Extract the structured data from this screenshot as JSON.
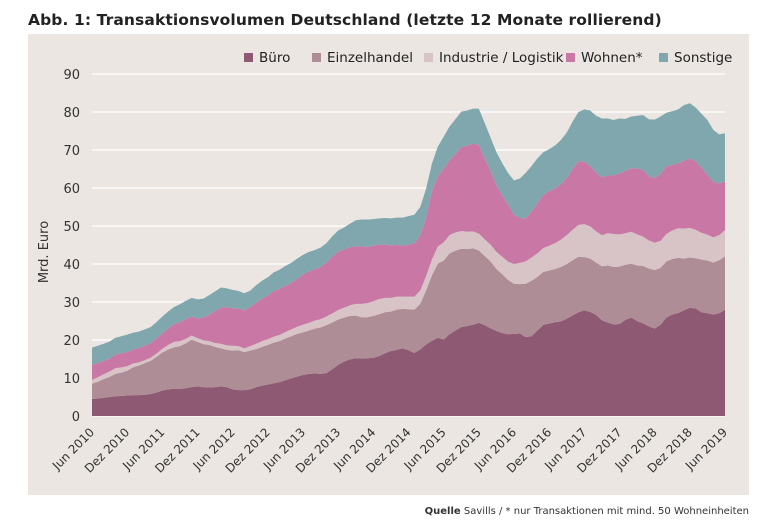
{
  "title": "Abb. 1: Transaktionsvolumen Deutschland (letzte 12 Monate rollierend)",
  "source": {
    "label": "Quelle",
    "text": "Savills / * nur Transaktionen mit mind. 50 Wohneinheiten"
  },
  "colors": {
    "background": "#ebe6e1",
    "buero": "#8e5a73",
    "einzelhandel": "#ae8d96",
    "industrie": "#d8c4c6",
    "wohnen": "#c978a6",
    "sonstige": "#80a7ad",
    "grid": "#ffffff"
  },
  "chart_data": {
    "type": "area",
    "stacked": true,
    "title": "Abb. 1: Transaktionsvolumen Deutschland (letzte 12 Monate rollierend)",
    "ylabel": "Mrd. Euro",
    "ylim": [
      0,
      90
    ],
    "yticks": [
      0,
      10,
      20,
      30,
      40,
      50,
      60,
      70,
      80,
      90
    ],
    "xticks": [
      "Jun 2010",
      "Dez 2010",
      "Jun 2011",
      "Dez 2011",
      "Jun 2012",
      "Dez 2012",
      "Jun 2013",
      "Dez 2013",
      "Jun 2014",
      "Dez 2014",
      "Jun 2015",
      "Dez 2015",
      "Jun 2016",
      "Dez 2016",
      "Jun 2017",
      "Dez 2017",
      "Jun 2018",
      "Dez 2018",
      "Jun 2019"
    ],
    "grid": true,
    "legend_position": "top-right",
    "x": [
      "2010-06",
      "2010-07",
      "2010-08",
      "2010-09",
      "2010-10",
      "2010-11",
      "2010-12",
      "2011-01",
      "2011-02",
      "2011-03",
      "2011-04",
      "2011-05",
      "2011-06",
      "2011-07",
      "2011-08",
      "2011-09",
      "2011-10",
      "2011-11",
      "2011-12",
      "2012-01",
      "2012-02",
      "2012-03",
      "2012-04",
      "2012-05",
      "2012-06",
      "2012-07",
      "2012-08",
      "2012-09",
      "2012-10",
      "2012-11",
      "2012-12",
      "2013-01",
      "2013-02",
      "2013-03",
      "2013-04",
      "2013-05",
      "2013-06",
      "2013-07",
      "2013-08",
      "2013-09",
      "2013-10",
      "2013-11",
      "2013-12",
      "2014-01",
      "2014-02",
      "2014-03",
      "2014-04",
      "2014-05",
      "2014-06",
      "2014-07",
      "2014-08",
      "2014-09",
      "2014-10",
      "2014-11",
      "2014-12",
      "2015-01",
      "2015-02",
      "2015-03",
      "2015-04",
      "2015-05",
      "2015-06",
      "2015-07",
      "2015-08",
      "2015-09",
      "2015-10",
      "2015-11",
      "2015-12",
      "2016-01",
      "2016-02",
      "2016-03",
      "2016-04",
      "2016-05",
      "2016-06",
      "2016-07",
      "2016-08",
      "2016-09",
      "2016-10",
      "2016-11",
      "2016-12",
      "2017-01",
      "2017-02",
      "2017-03",
      "2017-04",
      "2017-05",
      "2017-06",
      "2017-07",
      "2017-08",
      "2017-09",
      "2017-10",
      "2017-11",
      "2017-12",
      "2018-01",
      "2018-02",
      "2018-03",
      "2018-04",
      "2018-05",
      "2018-06",
      "2018-07",
      "2018-08",
      "2018-09",
      "2018-10",
      "2018-11",
      "2018-12",
      "2019-01",
      "2019-02",
      "2019-03",
      "2019-04",
      "2019-05",
      "2019-06"
    ],
    "series": [
      {
        "name": "Büro",
        "color_key": "buero",
        "values": [
          4.5,
          4.6,
          4.8,
          5.0,
          5.2,
          5.3,
          5.4,
          5.5,
          5.5,
          5.6,
          5.8,
          6.2,
          6.7,
          7.0,
          7.2,
          7.1,
          7.3,
          7.6,
          7.8,
          7.6,
          7.5,
          7.6,
          7.8,
          7.6,
          7.0,
          6.8,
          6.8,
          7.0,
          7.6,
          8.0,
          8.3,
          8.6,
          8.9,
          9.4,
          9.9,
          10.4,
          10.8,
          11.1,
          11.2,
          11.1,
          11.3,
          12.3,
          13.5,
          14.3,
          14.9,
          15.2,
          15.1,
          15.2,
          15.3,
          15.8,
          16.5,
          17.1,
          17.4,
          17.8,
          17.3,
          16.6,
          17.5,
          18.8,
          19.8,
          20.6,
          20.1,
          21.5,
          22.5,
          23.4,
          23.7,
          24.0,
          24.5,
          23.9,
          23.1,
          22.4,
          21.8,
          21.5,
          21.6,
          21.7,
          20.8,
          21.0,
          22.5,
          24.0,
          24.3,
          24.7,
          24.9,
          25.6,
          26.5,
          27.3,
          27.8,
          27.4,
          26.6,
          25.2,
          24.6,
          24.1,
          24.2,
          25.3,
          25.9,
          25.0,
          24.4,
          23.6,
          23.0,
          24.0,
          25.9,
          26.7,
          27.1,
          27.8,
          28.5,
          28.3,
          27.3,
          27.0,
          26.7,
          27.0,
          28.0
        ]
      },
      {
        "name": "Einzelhandel",
        "color_key": "einzelhandel",
        "values": [
          4.0,
          4.4,
          4.9,
          5.3,
          5.9,
          6.1,
          6.5,
          7.3,
          7.8,
          8.3,
          8.7,
          9.4,
          10.0,
          10.5,
          10.9,
          11.3,
          11.8,
          12.5,
          11.7,
          11.3,
          11.2,
          10.6,
          10.0,
          9.8,
          10.2,
          10.5,
          10.0,
          10.2,
          10.0,
          10.2,
          10.4,
          10.7,
          10.8,
          11.0,
          11.1,
          11.2,
          11.2,
          11.4,
          11.8,
          12.2,
          12.6,
          12.3,
          11.9,
          11.6,
          11.4,
          11.2,
          10.9,
          10.8,
          11.0,
          11.0,
          10.8,
          10.4,
          10.6,
          10.4,
          10.8,
          11.4,
          12.0,
          14.2,
          17.2,
          19.5,
          20.8,
          21.3,
          21.0,
          20.6,
          20.2,
          20.1,
          19.1,
          18.2,
          17.6,
          16.3,
          15.5,
          14.3,
          13.2,
          13.0,
          14.0,
          14.6,
          14.1,
          13.9,
          14.0,
          14.0,
          14.3,
          14.4,
          14.5,
          14.6,
          14.0,
          14.0,
          13.8,
          14.2,
          15.0,
          15.1,
          15.1,
          14.5,
          14.2,
          14.6,
          15.1,
          15.2,
          15.4,
          15.0,
          14.8,
          14.6,
          14.5,
          13.6,
          13.2,
          13.2,
          13.9,
          13.9,
          13.7,
          14.0,
          14.0
        ]
      },
      {
        "name": "Industrie / Logistik",
        "color_key": "industrie",
        "values": [
          1.0,
          1.2,
          1.3,
          1.4,
          1.5,
          1.4,
          1.2,
          1.0,
          0.8,
          0.8,
          0.8,
          0.8,
          1.0,
          1.2,
          1.4,
          1.3,
          1.2,
          1.1,
          1.0,
          1.0,
          1.0,
          1.0,
          1.2,
          1.2,
          1.3,
          1.1,
          1.0,
          1.2,
          1.4,
          1.5,
          1.5,
          1.6,
          1.6,
          1.7,
          1.8,
          1.9,
          2.0,
          2.0,
          2.1,
          2.2,
          2.3,
          2.4,
          2.5,
          2.6,
          2.8,
          3.1,
          3.5,
          3.7,
          3.9,
          4.0,
          3.8,
          3.6,
          3.4,
          3.2,
          3.3,
          3.4,
          3.5,
          3.8,
          4.2,
          4.5,
          4.8,
          4.8,
          4.8,
          4.7,
          4.6,
          4.5,
          4.4,
          4.4,
          4.4,
          4.5,
          4.6,
          4.8,
          5.2,
          5.6,
          5.9,
          6.1,
          6.2,
          6.3,
          6.5,
          6.8,
          7.2,
          7.6,
          8.0,
          8.4,
          8.7,
          8.5,
          8.2,
          8.2,
          8.5,
          8.7,
          8.5,
          8.3,
          8.4,
          8.2,
          7.7,
          7.4,
          7.2,
          7.1,
          7.2,
          7.5,
          7.8,
          7.9,
          7.8,
          7.5,
          7.0,
          6.8,
          6.6,
          6.6,
          6.9
        ]
      },
      {
        "name": "Wohnen*",
        "color_key": "wohnen",
        "values": [
          4.0,
          3.7,
          3.5,
          3.4,
          3.6,
          3.7,
          3.7,
          3.7,
          3.8,
          3.8,
          3.9,
          4.0,
          4.1,
          4.3,
          4.7,
          5.0,
          5.2,
          5.0,
          5.2,
          6.0,
          7.0,
          8.4,
          9.6,
          10.0,
          9.9,
          9.9,
          10.0,
          10.3,
          10.8,
          11.2,
          11.5,
          12.0,
          12.2,
          12.2,
          12.2,
          12.6,
          13.2,
          13.6,
          13.5,
          13.7,
          14.2,
          15.0,
          15.4,
          15.3,
          15.3,
          15.2,
          15.1,
          14.8,
          14.6,
          14.3,
          14.0,
          13.8,
          13.6,
          13.4,
          13.7,
          14.0,
          14.5,
          15.5,
          18.0,
          18.5,
          19.3,
          19.7,
          20.6,
          22.1,
          22.6,
          23.1,
          23.3,
          21.4,
          19.4,
          17.6,
          16.2,
          15.1,
          13.0,
          11.8,
          11.3,
          12.1,
          13.2,
          14.0,
          14.4,
          14.4,
          14.6,
          15.0,
          16.1,
          16.7,
          16.4,
          15.9,
          15.5,
          15.2,
          15.2,
          15.4,
          16.0,
          16.4,
          16.7,
          17.3,
          17.6,
          17.0,
          17.0,
          17.6,
          17.8,
          17.3,
          17.1,
          17.8,
          18.3,
          18.0,
          17.2,
          15.8,
          14.7,
          13.6,
          12.9
        ]
      },
      {
        "name": "Sonstige",
        "color_key": "sonstige",
        "values": [
          4.5,
          4.6,
          4.5,
          4.5,
          4.4,
          4.5,
          4.6,
          4.4,
          4.3,
          4.3,
          4.2,
          4.3,
          4.4,
          4.5,
          4.5,
          4.7,
          4.8,
          4.9,
          5.0,
          5.0,
          5.1,
          5.2,
          5.2,
          5.0,
          4.8,
          4.6,
          4.5,
          4.3,
          4.6,
          4.7,
          4.8,
          4.9,
          5.0,
          5.2,
          5.3,
          5.3,
          5.2,
          5.1,
          5.1,
          5.1,
          5.1,
          5.3,
          5.5,
          5.8,
          6.2,
          6.8,
          7.1,
          7.2,
          7.0,
          6.9,
          7.0,
          7.1,
          7.2,
          7.4,
          7.5,
          7.6,
          7.5,
          7.5,
          7.2,
          7.8,
          8.5,
          8.9,
          9.2,
          9.3,
          9.3,
          9.2,
          9.6,
          9.2,
          8.8,
          8.6,
          8.4,
          8.2,
          9.0,
          10.4,
          12.0,
          12.0,
          11.8,
          11.2,
          11.0,
          11.3,
          11.6,
          12.0,
          12.4,
          13.0,
          13.8,
          14.6,
          14.9,
          15.5,
          15.0,
          14.6,
          14.5,
          13.7,
          13.6,
          13.9,
          14.4,
          14.9,
          15.4,
          15.1,
          14.1,
          14.1,
          14.2,
          14.7,
          14.5,
          14.2,
          14.1,
          14.4,
          13.6,
          12.9,
          12.6
        ]
      }
    ]
  }
}
